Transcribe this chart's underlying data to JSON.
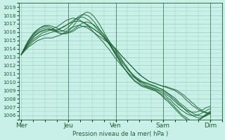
{
  "bg_color": "#c8f0e8",
  "grid_color": "#90c8b0",
  "line_color": "#1a6030",
  "ylabel": "Pression niveau de la mer( hPa )",
  "ylim": [
    1005.5,
    1019.5
  ],
  "yticks": [
    1006,
    1007,
    1008,
    1009,
    1010,
    1011,
    1012,
    1013,
    1014,
    1015,
    1016,
    1017,
    1018,
    1019
  ],
  "xtick_labels": [
    "Mer",
    "Jeu",
    "Ven",
    "Sam",
    "Dim"
  ],
  "xtick_positions": [
    0,
    20,
    40,
    60,
    80
  ],
  "xlim": [
    -1,
    85
  ],
  "vline_positions": [
    20,
    40,
    60,
    80
  ],
  "n_points": 81,
  "series": [
    [
      1013.3,
      1013.6,
      1013.9,
      1014.2,
      1014.4,
      1014.6,
      1014.8,
      1015.0,
      1015.1,
      1015.2,
      1015.3,
      1015.3,
      1015.3,
      1015.3,
      1015.4,
      1015.5,
      1015.6,
      1015.7,
      1015.9,
      1016.1,
      1016.3,
      1016.5,
      1016.6,
      1016.7,
      1016.8,
      1016.8,
      1016.7,
      1016.6,
      1016.5,
      1016.3,
      1016.1,
      1015.9,
      1015.7,
      1015.5,
      1015.3,
      1015.1,
      1014.9,
      1014.7,
      1014.5,
      1014.2,
      1013.9,
      1013.6,
      1013.3,
      1013.0,
      1012.7,
      1012.4,
      1012.1,
      1011.8,
      1011.5,
      1011.2,
      1010.9,
      1010.7,
      1010.5,
      1010.3,
      1010.1,
      1010.0,
      1009.9,
      1009.8,
      1009.7,
      1009.6,
      1009.5,
      1009.5,
      1009.4,
      1009.3,
      1009.2,
      1009.1,
      1009.0,
      1008.8,
      1008.6,
      1008.4,
      1008.1,
      1007.9,
      1007.6,
      1007.4,
      1007.1,
      1006.9,
      1006.7,
      1006.5,
      1006.4,
      1006.3,
      1006.2
    ],
    [
      1013.3,
      1013.7,
      1014.0,
      1014.3,
      1014.6,
      1014.9,
      1015.1,
      1015.3,
      1015.5,
      1015.6,
      1015.7,
      1015.8,
      1015.9,
      1016.0,
      1016.1,
      1016.2,
      1016.3,
      1016.5,
      1016.7,
      1016.8,
      1017.0,
      1017.1,
      1017.2,
      1017.3,
      1017.3,
      1017.3,
      1017.2,
      1017.1,
      1016.9,
      1016.7,
      1016.5,
      1016.3,
      1016.1,
      1015.9,
      1015.7,
      1015.4,
      1015.2,
      1014.9,
      1014.6,
      1014.3,
      1014.0,
      1013.7,
      1013.3,
      1013.0,
      1012.7,
      1012.4,
      1012.1,
      1011.8,
      1011.5,
      1011.2,
      1011.0,
      1010.7,
      1010.5,
      1010.3,
      1010.1,
      1010.0,
      1009.9,
      1009.8,
      1009.7,
      1009.6,
      1009.5,
      1009.4,
      1009.3,
      1009.2,
      1009.1,
      1009.0,
      1008.8,
      1008.6,
      1008.4,
      1008.1,
      1007.8,
      1007.6,
      1007.3,
      1007.1,
      1006.9,
      1006.7,
      1006.5,
      1006.4,
      1006.3,
      1006.3,
      1006.3
    ],
    [
      1013.3,
      1013.7,
      1014.1,
      1014.5,
      1014.8,
      1015.1,
      1015.3,
      1015.5,
      1015.7,
      1015.9,
      1016.0,
      1016.1,
      1016.2,
      1016.3,
      1016.5,
      1016.6,
      1016.8,
      1017.0,
      1017.2,
      1017.4,
      1017.5,
      1017.6,
      1017.7,
      1017.6,
      1017.5,
      1017.4,
      1017.2,
      1017.0,
      1016.8,
      1016.5,
      1016.2,
      1015.9,
      1015.6,
      1015.3,
      1015.0,
      1014.7,
      1014.3,
      1014.0,
      1013.6,
      1013.2,
      1012.8,
      1012.5,
      1012.1,
      1011.8,
      1011.5,
      1011.2,
      1010.9,
      1010.7,
      1010.5,
      1010.3,
      1010.1,
      1010.0,
      1009.9,
      1009.8,
      1009.7,
      1009.6,
      1009.5,
      1009.4,
      1009.3,
      1009.2,
      1009.1,
      1008.9,
      1008.7,
      1008.5,
      1008.3,
      1008.1,
      1007.8,
      1007.5,
      1007.3,
      1007.1,
      1006.8,
      1006.6,
      1006.4,
      1006.2,
      1006.1,
      1006.0,
      1005.9,
      1005.9,
      1006.0,
      1006.1,
      1006.2
    ],
    [
      1013.3,
      1013.8,
      1014.2,
      1014.6,
      1015.0,
      1015.3,
      1015.6,
      1015.8,
      1016.0,
      1016.1,
      1016.2,
      1016.3,
      1016.3,
      1016.3,
      1016.3,
      1016.3,
      1016.4,
      1016.5,
      1016.6,
      1016.8,
      1017.0,
      1017.2,
      1017.4,
      1017.6,
      1017.7,
      1017.8,
      1017.8,
      1017.7,
      1017.5,
      1017.3,
      1017.0,
      1016.7,
      1016.4,
      1016.1,
      1015.7,
      1015.4,
      1015.0,
      1014.6,
      1014.2,
      1013.8,
      1013.4,
      1013.0,
      1012.6,
      1012.2,
      1011.9,
      1011.5,
      1011.2,
      1010.9,
      1010.7,
      1010.5,
      1010.3,
      1010.1,
      1010.0,
      1009.9,
      1009.8,
      1009.7,
      1009.6,
      1009.5,
      1009.3,
      1009.2,
      1009.0,
      1008.8,
      1008.6,
      1008.4,
      1008.1,
      1007.9,
      1007.6,
      1007.3,
      1007.1,
      1006.8,
      1006.5,
      1006.3,
      1006.1,
      1005.9,
      1005.8,
      1005.7,
      1005.7,
      1005.8,
      1005.9,
      1006.1,
      1006.2
    ],
    [
      1013.3,
      1013.8,
      1014.3,
      1014.8,
      1015.2,
      1015.6,
      1015.9,
      1016.1,
      1016.3,
      1016.4,
      1016.5,
      1016.5,
      1016.4,
      1016.3,
      1016.2,
      1016.1,
      1016.1,
      1016.1,
      1016.2,
      1016.4,
      1016.6,
      1016.9,
      1017.2,
      1017.5,
      1017.8,
      1018.0,
      1018.1,
      1018.1,
      1018.0,
      1017.8,
      1017.5,
      1017.2,
      1016.8,
      1016.4,
      1016.0,
      1015.6,
      1015.1,
      1014.7,
      1014.2,
      1013.7,
      1013.2,
      1012.8,
      1012.3,
      1011.9,
      1011.5,
      1011.1,
      1010.8,
      1010.5,
      1010.2,
      1010.0,
      1009.8,
      1009.6,
      1009.5,
      1009.4,
      1009.3,
      1009.2,
      1009.1,
      1009.0,
      1008.8,
      1008.6,
      1008.4,
      1008.1,
      1007.9,
      1007.6,
      1007.3,
      1007.0,
      1006.7,
      1006.4,
      1006.1,
      1005.9,
      1005.7,
      1005.5,
      1005.4,
      1005.4,
      1005.4,
      1005.5,
      1005.6,
      1005.8,
      1006.0,
      1006.2,
      1006.4
    ],
    [
      1013.3,
      1013.9,
      1014.5,
      1015.0,
      1015.4,
      1015.8,
      1016.1,
      1016.3,
      1016.5,
      1016.6,
      1016.7,
      1016.7,
      1016.6,
      1016.5,
      1016.3,
      1016.1,
      1015.9,
      1015.8,
      1015.8,
      1015.9,
      1016.1,
      1016.4,
      1016.7,
      1017.1,
      1017.5,
      1017.8,
      1018.1,
      1018.3,
      1018.4,
      1018.3,
      1018.1,
      1017.8,
      1017.4,
      1017.0,
      1016.5,
      1016.0,
      1015.5,
      1015.0,
      1014.4,
      1013.9,
      1013.4,
      1012.9,
      1012.4,
      1011.9,
      1011.5,
      1011.1,
      1010.7,
      1010.4,
      1010.1,
      1009.9,
      1009.7,
      1009.5,
      1009.4,
      1009.3,
      1009.2,
      1009.1,
      1009.0,
      1008.9,
      1008.7,
      1008.5,
      1008.2,
      1007.9,
      1007.7,
      1007.4,
      1007.1,
      1006.8,
      1006.5,
      1006.2,
      1005.9,
      1005.7,
      1005.5,
      1005.3,
      1005.2,
      1005.2,
      1005.3,
      1005.4,
      1005.6,
      1005.9,
      1006.1,
      1006.3,
      1006.5
    ],
    [
      1013.3,
      1013.9,
      1014.4,
      1014.9,
      1015.3,
      1015.7,
      1016.0,
      1016.3,
      1016.5,
      1016.7,
      1016.8,
      1016.8,
      1016.8,
      1016.7,
      1016.6,
      1016.5,
      1016.3,
      1016.2,
      1016.1,
      1016.0,
      1016.0,
      1016.1,
      1016.3,
      1016.5,
      1016.7,
      1016.9,
      1017.1,
      1017.2,
      1017.2,
      1017.1,
      1017.0,
      1016.8,
      1016.6,
      1016.3,
      1016.0,
      1015.7,
      1015.4,
      1015.0,
      1014.6,
      1014.2,
      1013.8,
      1013.4,
      1013.0,
      1012.5,
      1012.1,
      1011.7,
      1011.3,
      1010.9,
      1010.6,
      1010.3,
      1010.0,
      1009.8,
      1009.6,
      1009.5,
      1009.4,
      1009.3,
      1009.2,
      1009.1,
      1009.0,
      1008.8,
      1008.6,
      1008.4,
      1008.1,
      1007.9,
      1007.6,
      1007.3,
      1007.1,
      1006.8,
      1006.6,
      1006.4,
      1006.2,
      1006.1,
      1006.0,
      1006.0,
      1006.0,
      1006.1,
      1006.2,
      1006.4,
      1006.5,
      1006.7,
      1006.8
    ],
    [
      1013.3,
      1013.8,
      1014.2,
      1014.6,
      1015.0,
      1015.4,
      1015.7,
      1015.9,
      1016.1,
      1016.2,
      1016.3,
      1016.3,
      1016.3,
      1016.2,
      1016.1,
      1016.0,
      1015.9,
      1015.8,
      1015.8,
      1015.8,
      1015.9,
      1016.0,
      1016.1,
      1016.3,
      1016.5,
      1016.6,
      1016.7,
      1016.7,
      1016.7,
      1016.6,
      1016.5,
      1016.3,
      1016.1,
      1015.9,
      1015.6,
      1015.3,
      1015.0,
      1014.7,
      1014.3,
      1013.9,
      1013.6,
      1013.2,
      1012.8,
      1012.4,
      1012.1,
      1011.7,
      1011.3,
      1011.0,
      1010.7,
      1010.4,
      1010.2,
      1010.0,
      1009.8,
      1009.6,
      1009.5,
      1009.4,
      1009.3,
      1009.2,
      1009.1,
      1009.0,
      1008.8,
      1008.6,
      1008.4,
      1008.2,
      1007.9,
      1007.7,
      1007.4,
      1007.2,
      1007.0,
      1006.8,
      1006.6,
      1006.5,
      1006.4,
      1006.4,
      1006.4,
      1006.5,
      1006.6,
      1006.7,
      1006.9,
      1007.0,
      1007.1
    ]
  ]
}
